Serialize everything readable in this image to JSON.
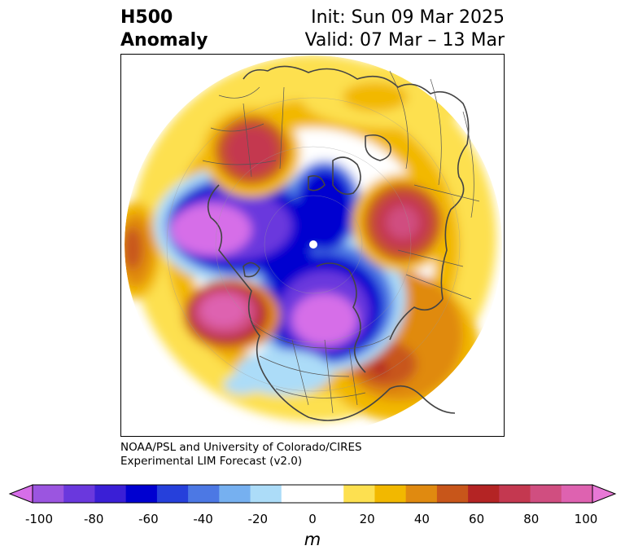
{
  "header": {
    "title_line1": "H500",
    "title_line2": "Anomaly",
    "init_text": "Init: Sun 09 Mar 2025",
    "valid_text": "Valid: 07 Mar – 13 Mar"
  },
  "credit": {
    "line1": "NOAA/PSL and University of Colorado/CIRES",
    "line2": "Experimental LIM Forecast (v2.0)"
  },
  "colorbar": {
    "unit": "m",
    "ticks": [
      "-100",
      "-80",
      "-60",
      "-40",
      "-20",
      "0",
      "20",
      "40",
      "60",
      "80",
      "100"
    ],
    "colors": [
      "#d66ee8",
      "#9b55e0",
      "#6a38dd",
      "#3a1fd6",
      "#0000d0",
      "#2640db",
      "#4c78e4",
      "#76b0f0",
      "#acdcf8",
      "#ffffff",
      "#ffffff",
      "#fde050",
      "#f2b800",
      "#e08a10",
      "#c8561a",
      "#b42424",
      "#c43850",
      "#d04e80",
      "#de62b0",
      "#e878d6"
    ]
  },
  "map": {
    "projection": "north-polar-stereographic",
    "palette": {
      "neg20": "#acdcf8",
      "neg30": "#76b0f0",
      "neg40": "#4c78e4",
      "neg50": "#2640db",
      "neg60": "#0000d0",
      "neg70": "#3a1fd6",
      "neg80": "#6a38dd",
      "neg90": "#9b55e0",
      "neg100": "#d66ee8",
      "pos10": "#fde050",
      "pos20": "#f2b800",
      "pos30": "#e08a10",
      "pos40": "#c8561a",
      "pos50": "#b42424",
      "pos60": "#c43850",
      "pos70": "#d04e80",
      "pos80": "#de62b0"
    }
  }
}
